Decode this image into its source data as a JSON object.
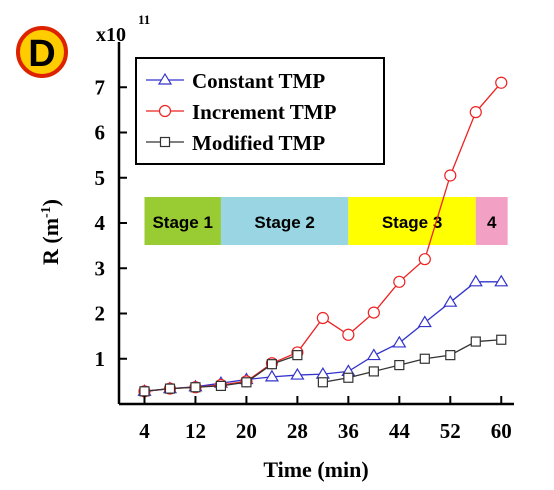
{
  "chart_data": {
    "type": "line",
    "panel_label": "D",
    "scale_label": "x10",
    "scale_exponent": "11",
    "ylabel": "R (m",
    "ylabel_exponent": "-1",
    "ylabel_close": ")",
    "xlabel": "Time (min)",
    "xlim": [
      0,
      62
    ],
    "ylim": [
      0,
      8
    ],
    "x_ticks": [
      4,
      12,
      20,
      28,
      36,
      44,
      52,
      60
    ],
    "y_ticks": [
      1,
      2,
      3,
      4,
      5,
      6,
      7
    ],
    "legend_position": "top-left",
    "stages": [
      {
        "label": "Stage 1",
        "x_start": 4,
        "x_end": 16,
        "color": "#99cc33"
      },
      {
        "label": "Stage 2",
        "x_start": 16,
        "x_end": 36,
        "color": "#99d5e3"
      },
      {
        "label": "Stage 3",
        "x_start": 36,
        "x_end": 56,
        "color": "#ffff00"
      },
      {
        "label": "4",
        "x_start": 56,
        "x_end": 61,
        "color": "#f2a0c3"
      }
    ],
    "series": [
      {
        "name": "Constant TMP",
        "color": "#3333cc",
        "marker": "triangle",
        "x": [
          4,
          8,
          12,
          16,
          20,
          24,
          28,
          32,
          36,
          40,
          44,
          48,
          52,
          56,
          60
        ],
        "y": [
          0.28,
          0.34,
          0.38,
          0.46,
          0.54,
          0.6,
          0.64,
          0.66,
          0.72,
          1.07,
          1.35,
          1.8,
          2.25,
          2.7,
          2.7
        ]
      },
      {
        "name": "Increment TMP",
        "color": "#ee2222",
        "marker": "circle",
        "x": [
          4,
          8,
          12,
          16,
          20,
          24,
          28,
          32,
          36,
          40,
          44,
          48,
          52,
          56,
          60
        ],
        "y": [
          0.28,
          0.34,
          0.37,
          0.42,
          0.5,
          0.9,
          1.14,
          1.9,
          1.53,
          2.02,
          2.7,
          3.2,
          5.05,
          6.45,
          7.1
        ]
      },
      {
        "name": "Modified TMP",
        "color": "#333333",
        "marker": "square",
        "segments": [
          {
            "x": [
              4,
              8,
              12,
              16,
              20,
              24,
              28
            ],
            "y": [
              0.28,
              0.34,
              0.37,
              0.4,
              0.48,
              0.88,
              1.08
            ]
          },
          {
            "x": [
              32,
              36,
              40,
              44,
              48,
              52,
              56,
              60
            ],
            "y": [
              0.48,
              0.58,
              0.72,
              0.86,
              1.0,
              1.08,
              1.38,
              1.42
            ]
          }
        ]
      }
    ]
  }
}
